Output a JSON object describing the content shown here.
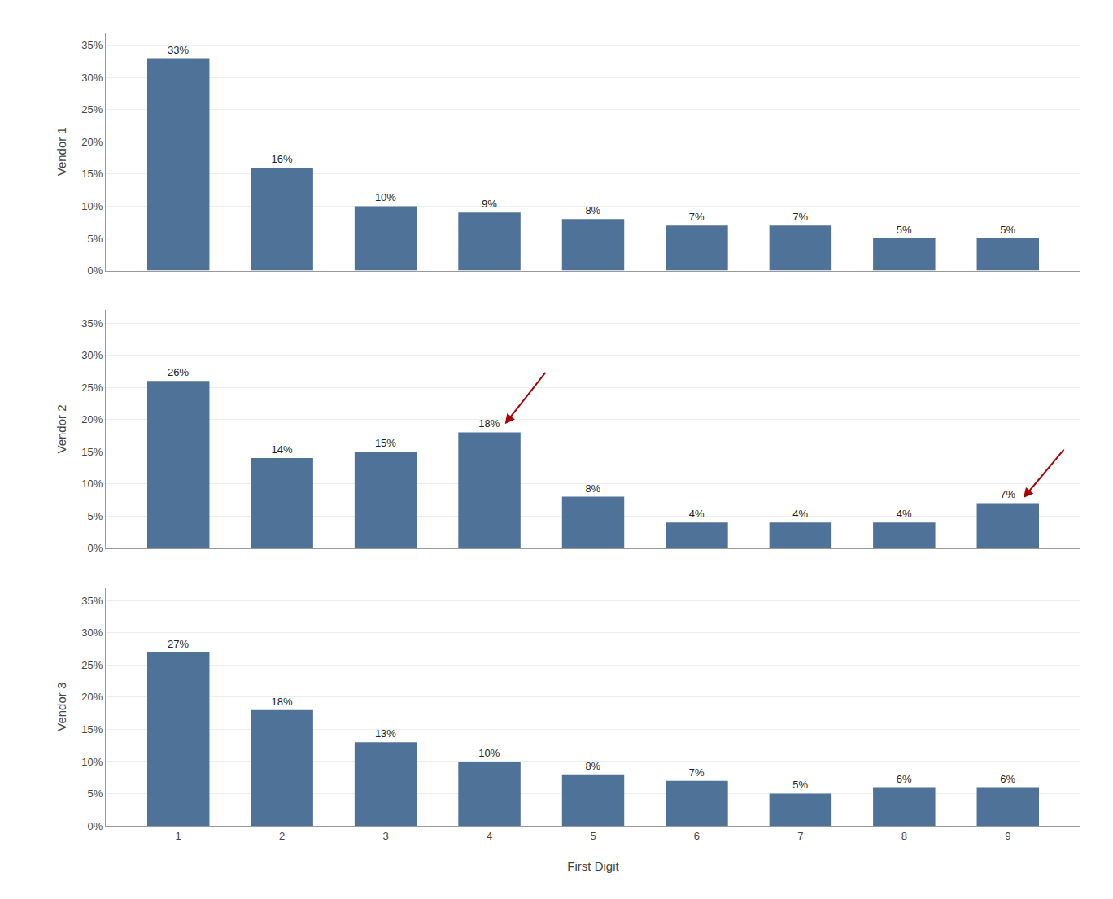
{
  "chart_data": [
    {
      "type": "bar",
      "ylabel": "Vendor 1",
      "x": [
        1,
        2,
        3,
        4,
        5,
        6,
        7,
        8,
        9
      ],
      "values": [
        0.33,
        0.16,
        0.1,
        0.09,
        0.08,
        0.07,
        0.07,
        0.05,
        0.05
      ],
      "value_labels": [
        "33%",
        "16%",
        "10%",
        "9%",
        "8%",
        "7%",
        "7%",
        "5%",
        "5%"
      ],
      "data_labels": true,
      "color": "#4f7298",
      "xlim": [
        0.3,
        9.7
      ],
      "xticks": [
        1,
        2,
        3,
        4,
        5,
        6,
        7,
        8,
        9
      ],
      "ylim": [
        0,
        0.37
      ],
      "yticks": [
        {
          "value": 0.0,
          "label": "0%"
        },
        {
          "value": 0.05,
          "label": "5%"
        },
        {
          "value": 0.1,
          "label": "10%"
        },
        {
          "value": 0.15,
          "label": "15%"
        },
        {
          "value": 0.2,
          "label": "20%"
        },
        {
          "value": 0.25,
          "label": "25%"
        },
        {
          "value": 0.3,
          "label": "30%"
        },
        {
          "value": 0.35,
          "label": "35%"
        }
      ],
      "grid": true,
      "tick_labels": "y"
    },
    {
      "type": "bar",
      "ylabel": "Vendor 2",
      "x": [
        1,
        2,
        3,
        4,
        5,
        6,
        7,
        8,
        9
      ],
      "values": [
        0.26,
        0.14,
        0.15,
        0.18,
        0.08,
        0.04,
        0.04,
        0.04,
        0.07
      ],
      "value_labels": [
        "26%",
        "14%",
        "15%",
        "18%",
        "8%",
        "4%",
        "4%",
        "4%",
        "7%"
      ],
      "data_labels": true,
      "color": "#4f7298",
      "xlim": [
        0.3,
        9.7
      ],
      "xticks": [
        1,
        2,
        3,
        4,
        5,
        6,
        7,
        8,
        9
      ],
      "ylim": [
        0,
        0.37
      ],
      "yticks": [
        {
          "value": 0.0,
          "label": "0%"
        },
        {
          "value": 0.05,
          "label": "5%"
        },
        {
          "value": 0.1,
          "label": "10%"
        },
        {
          "value": 0.15,
          "label": "15%"
        },
        {
          "value": 0.2,
          "label": "20%"
        },
        {
          "value": 0.25,
          "label": "25%"
        },
        {
          "value": 0.3,
          "label": "30%"
        },
        {
          "value": 0.35,
          "label": "35%"
        }
      ],
      "grid": true,
      "tick_labels": "y",
      "arrows": [
        {
          "x_tail": 4.55,
          "y_tail": 0.275,
          "x_head": 4.15,
          "y_head": 0.193,
          "color": "#aa0000"
        },
        {
          "x_tail": 9.55,
          "y_tail": 0.155,
          "x_head": 9.15,
          "y_head": 0.078,
          "color": "#aa0000"
        }
      ]
    },
    {
      "type": "bar",
      "ylabel": "Vendor 3",
      "xlabel": "First Digit",
      "x": [
        1,
        2,
        3,
        4,
        5,
        6,
        7,
        8,
        9
      ],
      "values": [
        0.27,
        0.18,
        0.13,
        0.1,
        0.08,
        0.07,
        0.05,
        0.06,
        0.06
      ],
      "value_labels": [
        "27%",
        "18%",
        "13%",
        "10%",
        "8%",
        "7%",
        "5%",
        "6%",
        "6%"
      ],
      "data_labels": true,
      "color": "#4f7298",
      "xlim": [
        0.3,
        9.7
      ],
      "xticks": [
        1,
        2,
        3,
        4,
        5,
        6,
        7,
        8,
        9
      ],
      "ylim": [
        0,
        0.37
      ],
      "yticks": [
        {
          "value": 0.0,
          "label": "0%"
        },
        {
          "value": 0.05,
          "label": "5%"
        },
        {
          "value": 0.1,
          "label": "10%"
        },
        {
          "value": 0.15,
          "label": "15%"
        },
        {
          "value": 0.2,
          "label": "20%"
        },
        {
          "value": 0.25,
          "label": "25%"
        },
        {
          "value": 0.3,
          "label": "30%"
        },
        {
          "value": 0.35,
          "label": "35%"
        }
      ],
      "grid": true
    }
  ]
}
